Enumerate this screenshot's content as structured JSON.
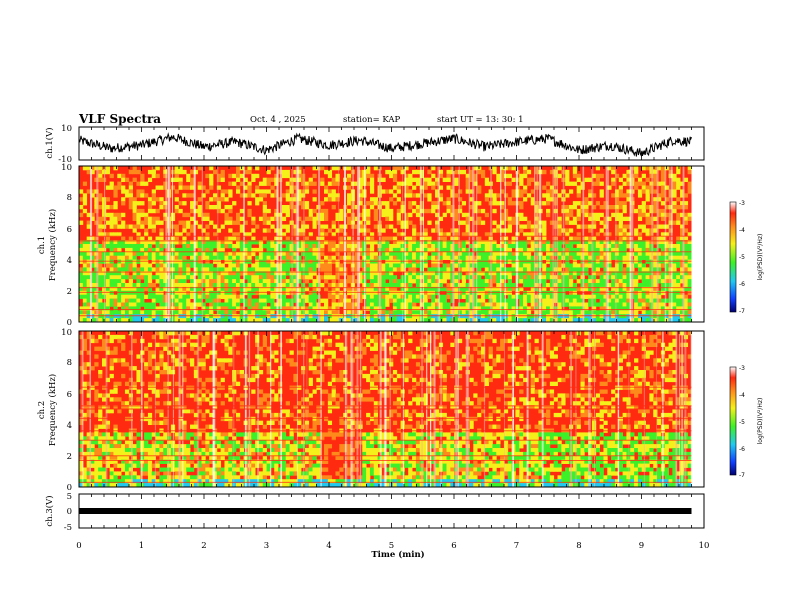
{
  "header": {
    "title": "VLF Spectra",
    "date": "Oct. 4  , 2025",
    "station": "station= KAP",
    "start": "start  UT  =   13: 30: 1"
  },
  "x_axis": {
    "label": "Time  (min)",
    "range": [
      0,
      10
    ],
    "ticks": [
      "0",
      "1",
      "2",
      "3",
      "4",
      "5",
      "6",
      "7",
      "8",
      "9",
      "10"
    ]
  },
  "colors": {
    "red": "#ff2a10",
    "orange": "#ff8a1c",
    "yellow": "#f5f01a",
    "green": "#3ef028",
    "cyan": "#22c8f0",
    "blue": "#1040ff",
    "navy": "#000070"
  },
  "chart_data": [
    {
      "type": "line",
      "name": "ch1-waveform",
      "ylabel": "ch.1(V)",
      "ylim": [
        -10,
        10
      ],
      "yticks": [
        "10",
        "-10"
      ],
      "x_range": [
        0,
        9.8
      ],
      "series": [
        {
          "x": [
            0,
            0.5,
            1,
            1.5,
            2,
            2.5,
            3,
            3.5,
            4,
            4.5,
            5,
            5.5,
            6,
            6.5,
            7,
            7.5,
            8,
            8.5,
            9,
            9.5,
            9.8
          ],
          "values": [
            2,
            -3,
            -1,
            4,
            -2,
            1,
            -4,
            3,
            -1,
            2,
            -3,
            0,
            3,
            -2,
            1,
            3,
            -4,
            -1,
            -6,
            2,
            1
          ]
        }
      ]
    },
    {
      "type": "heatmap",
      "name": "ch1-spectrogram",
      "ylabel_line1": "ch.1",
      "ylabel_line2": "Frequency  (kHz)",
      "ylim": [
        0,
        10
      ],
      "yticks": [
        "0",
        "2",
        "4",
        "6",
        "8",
        "10"
      ],
      "x_range": [
        0,
        9.8
      ],
      "colorbar": {
        "label": "log(PSD)(V²/Hz)",
        "range": [
          -7,
          -3
        ],
        "ticks": [
          "-3",
          "-4",
          "-5",
          "-6",
          "-7"
        ]
      }
    },
    {
      "type": "heatmap",
      "name": "ch2-spectrogram",
      "ylabel_line1": "ch.2",
      "ylabel_line2": "Frequency  (kHz)",
      "ylim": [
        0,
        10
      ],
      "yticks": [
        "0",
        "2",
        "4",
        "6",
        "8",
        "10"
      ],
      "x_range": [
        0,
        9.8
      ],
      "colorbar": {
        "label": "log(PSD)(V²/Hz)",
        "range": [
          -7,
          -3
        ],
        "ticks": [
          "-3",
          "-4",
          "-5",
          "-6",
          "-7"
        ]
      }
    },
    {
      "type": "line",
      "name": "ch3-waveform",
      "ylabel": "ch.3(V)",
      "ylim": [
        -5,
        5
      ],
      "yticks": [
        "5",
        "0",
        "-5"
      ],
      "x_range": [
        0,
        9.8
      ],
      "series": [
        {
          "x": [
            0,
            9.8
          ],
          "values": [
            0,
            0
          ]
        }
      ]
    }
  ]
}
